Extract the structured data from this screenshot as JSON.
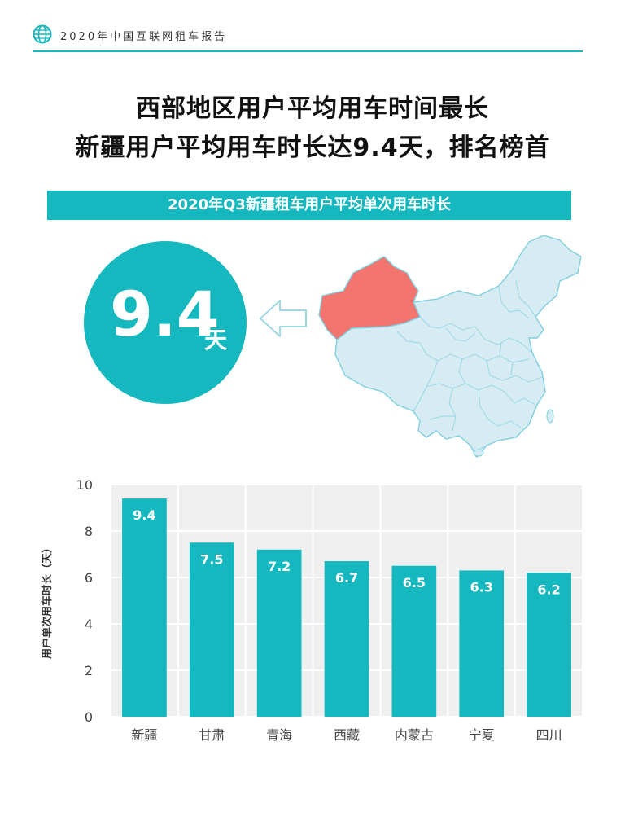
{
  "header": {
    "text": "2020年中国互联网租车报告",
    "icon": "globe-icon",
    "accent": "#16b7bd"
  },
  "headline": {
    "line1": "西部地区用户平均用车时间最长",
    "line2": "新疆用户平均用车时长达9.4天，排名榜首"
  },
  "banner": {
    "title": "2020年Q3新疆租车用户平均单次用车时长"
  },
  "highlight": {
    "value": "9.4",
    "unit": "天",
    "color": "#14b8be"
  },
  "map": {
    "highlighted_region": "新疆",
    "highlight_color": "#f2766f",
    "base_color": "#d7ebf2",
    "border_color": "#7fcfe0"
  },
  "chart_data": {
    "type": "bar",
    "categories": [
      "新疆",
      "甘肃",
      "青海",
      "西藏",
      "内蒙古",
      "宁夏",
      "四川"
    ],
    "values": [
      9.4,
      7.5,
      7.2,
      6.7,
      6.5,
      6.3,
      6.2
    ],
    "data_labels": [
      "9.4",
      "7.5",
      "7.2",
      "6.7",
      "6.5",
      "6.3",
      "6.2"
    ],
    "ylabel": "用户单次用车时长（天）",
    "ylim": [
      0,
      10
    ],
    "yticks": [
      0,
      2,
      4,
      6,
      8,
      10
    ],
    "grid": true,
    "bar_color": "#14b8be",
    "plot_background": "#efefef"
  }
}
